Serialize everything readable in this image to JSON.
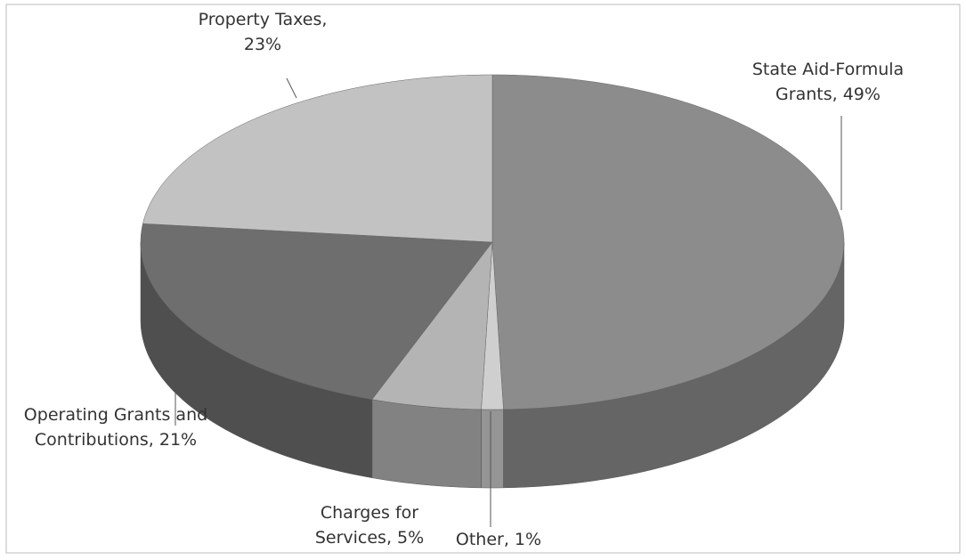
{
  "chart_data": {
    "type": "pie3d",
    "values": [
      49,
      1,
      5,
      21,
      23
    ],
    "value_labels": [
      "State Aid-Formula Grants, 49%",
      "Other, 1%",
      "Charges for Services, 5%",
      "Operating Grants and Contributions, 21%",
      "Property Taxes, 23%"
    ],
    "colors": [
      "#8c8c8c",
      "#cfcfcf",
      "#b4b4b4",
      "#6e6e6e",
      "#c2c2c2"
    ]
  }
}
